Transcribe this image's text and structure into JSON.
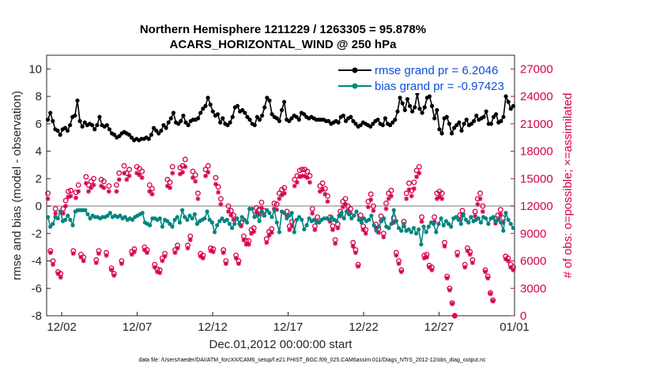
{
  "chart_data": {
    "type": "line",
    "title": "Northern Hemisphere 1211229 / 1263305 = 95.878%",
    "subtitle": "ACARS_HORIZONTAL_WIND @ 250 hPa",
    "xlabel": "Dec.01,2012 00:00:00 start",
    "ylabel": "rmse and bias (model - observation)",
    "ylabel_right": "# of obs: o=possible; ×=assimilated",
    "x_ticks": [
      "12/02",
      "12/07",
      "12/12",
      "12/17",
      "12/22",
      "12/27",
      "01/01"
    ],
    "x_tick_days": [
      1,
      6,
      11,
      16,
      21,
      26,
      31
    ],
    "xlim": [
      0,
      31
    ],
    "ylim": [
      -8,
      11
    ],
    "y_ticks": [
      -8,
      -6,
      -4,
      -2,
      0,
      2,
      4,
      6,
      8,
      10
    ],
    "y_right_lim": [
      0,
      28500
    ],
    "y_right_ticks": [
      0,
      3000,
      6000,
      9000,
      12000,
      15000,
      18000,
      21000,
      24000,
      27000
    ],
    "zero_line": true,
    "legend": [
      {
        "label": "rmse grand pr = 6.2046",
        "color": "#000000"
      },
      {
        "label": "bias grand pr = -0.97423",
        "color": "#00857f"
      }
    ],
    "footnote": "data file: /Users/raeder/DAI/ATM_forcXX/CAM6_setup/f.e21.FHIST_BGC.f09_025.CAM6assim.011/Diags_NTrS_2012-12/obs_diag_output.nc",
    "series": [
      {
        "name": "rmse",
        "color": "#000000",
        "values": [
          6.3,
          6.8,
          6.2,
          5.6,
          5.5,
          5.2,
          5.6,
          5.7,
          5.5,
          5.9,
          6.5,
          6.6,
          7.7,
          6.2,
          5.8,
          6.1,
          5.9,
          6.0,
          5.9,
          5.6,
          5.9,
          6.5,
          5.9,
          5.8,
          5.9,
          5.6,
          5.3,
          5.2,
          5.0,
          5.1,
          5.3,
          5.4,
          5.3,
          5.2,
          5.0,
          4.8,
          4.9,
          4.8,
          4.9,
          4.9,
          5.0,
          4.9,
          5.2,
          5.7,
          5.5,
          5.3,
          5.5,
          5.9,
          5.7,
          6.1,
          6.4,
          6.8,
          6.1,
          6.0,
          6.2,
          6.6,
          6.1,
          5.9,
          6.2,
          6.3,
          6.3,
          6.4,
          6.8,
          7.1,
          7.3,
          7.9,
          7.4,
          6.9,
          6.6,
          6.7,
          6.1,
          6.4,
          6.0,
          5.9,
          6.1,
          6.5,
          7.2,
          7.3,
          6.9,
          7.0,
          6.8,
          6.5,
          6.3,
          6.0,
          5.9,
          6.5,
          6.3,
          6.6,
          7.2,
          7.9,
          7.7,
          6.7,
          6.5,
          6.4,
          6.2,
          7.0,
          7.6,
          6.3,
          6.2,
          6.4,
          6.6,
          6.5,
          6.3,
          6.8,
          6.7,
          6.5,
          6.4,
          6.5,
          6.4,
          6.3,
          6.3,
          6.3,
          6.3,
          6.2,
          6.2,
          6.0,
          6.1,
          6.2,
          6.1,
          6.5,
          6.6,
          6.2,
          6.4,
          6.5,
          6.2,
          6.0,
          5.8,
          5.9,
          6.1,
          6.0,
          5.9,
          5.8,
          6.0,
          6.2,
          6.3,
          6.0,
          5.9,
          6.4,
          6.0,
          5.9,
          6.1,
          6.3,
          6.9,
          7.9,
          7.5,
          7.0,
          7.8,
          7.3,
          6.9,
          7.2,
          8.2,
          7.1,
          6.8,
          7.2,
          7.9,
          8.0,
          7.3,
          6.4,
          7.0,
          5.6,
          5.3,
          6.4,
          6.5,
          6.0,
          5.3,
          5.7,
          5.9,
          6.1,
          5.5,
          6.0,
          6.3,
          5.9,
          6.0,
          6.2,
          6.6,
          6.3,
          6.4,
          6.5,
          6.9,
          6.0,
          6.0,
          6.5,
          6.7,
          6.1,
          6.2,
          6.5,
          8.0,
          7.6,
          7.1,
          7.3
        ]
      },
      {
        "name": "bias",
        "color": "#00857f",
        "values": [
          -0.8,
          -1.5,
          -1.3,
          -0.8,
          -0.9,
          -0.4,
          -1.1,
          -1.0,
          -0.7,
          -1.0,
          -1.4,
          -0.4,
          -0.3,
          -0.3,
          -0.3,
          -0.3,
          -0.6,
          -0.9,
          -0.7,
          -0.8,
          -0.8,
          -0.9,
          -0.8,
          -0.8,
          -0.7,
          -0.5,
          -0.8,
          -0.7,
          -0.8,
          -0.7,
          -0.9,
          -0.8,
          -1.0,
          -0.9,
          -1.0,
          -0.8,
          -0.7,
          -0.6,
          -0.5,
          -1.2,
          -1.3,
          -1.4,
          -0.9,
          -0.9,
          -1.0,
          -0.9,
          -1.5,
          -1.0,
          -1.1,
          -1.3,
          -1.5,
          -1.0,
          -0.8,
          -1.2,
          -0.3,
          -0.8,
          -1.0,
          -0.7,
          -0.9,
          -0.6,
          -1.3,
          -1.1,
          -1.0,
          -0.9,
          -0.4,
          -1.0,
          -1.2,
          -1.9,
          -1.4,
          -1.1,
          -0.9,
          -1.1,
          -1.0,
          -1.3,
          -1.6,
          -1.3,
          -0.9,
          -1.3,
          -0.8,
          -1.0,
          -1.2,
          -0.2,
          -0.2,
          -0.8,
          -0.7,
          -1.1,
          -0.4,
          -0.7,
          -0.3,
          -0.5,
          -0.8,
          -0.3,
          -1.2,
          -1.9,
          -0.4,
          -0.5,
          -0.9,
          -0.7,
          -0.5,
          -1.9,
          -1.0,
          -0.8,
          -1.0,
          -1.7,
          -1.4,
          -0.9,
          -1.1,
          -1.0,
          -1.2,
          -1.2,
          -1.0,
          -0.9,
          -0.9,
          -1.0,
          -0.8,
          -1.0,
          -1.1,
          -0.7,
          -0.5,
          -0.9,
          -0.4,
          -0.6,
          -0.9,
          -0.7,
          -0.4,
          -1.0,
          -1.2,
          -0.9,
          -1.1,
          -1.0,
          -0.7,
          -1.4,
          -1.8,
          -1.5,
          -1.1,
          -0.9,
          -1.5,
          -1.6,
          -1.3,
          -0.3,
          -1.1,
          -1.6,
          -1.8,
          -1.3,
          -1.8,
          -1.7,
          -1.9,
          -1.6,
          -2.0,
          -1.7,
          -2.8,
          -1.5,
          -1.9,
          -1.5,
          -1.2,
          -1.3,
          -1.9,
          -1.3,
          -0.9,
          -1.4,
          -1.1,
          -1.3,
          -1.5,
          -0.9,
          -0.8,
          -1.0,
          -1.3,
          -0.6,
          -1.0,
          -1.2,
          -0.8,
          -1.1,
          -1.0,
          -0.9,
          -1.2,
          -0.8,
          -0.9,
          -1.3,
          -0.9,
          -0.8,
          -1.1,
          -0.9,
          -1.2,
          -1.8,
          -0.5,
          -1.0,
          -1.3,
          -1.6
        ]
      },
      {
        "name": "possible",
        "color": "#d6004f",
        "marker": "o",
        "values": [
          13400,
          7100,
          6000,
          11700,
          4800,
          4600,
          11700,
          12600,
          13600,
          13700,
          7100,
          13500,
          14300,
          6700,
          6400,
          15200,
          14300,
          14700,
          15000,
          6100,
          7100,
          14900,
          14700,
          6900,
          14200,
          5200,
          4600,
          14300,
          15600,
          6000,
          16400,
          15600,
          16000,
          7000,
          7300,
          16300,
          16100,
          15800,
          7500,
          7200,
          14300,
          13900,
          5600,
          5100,
          5000,
          6300,
          6800,
          14900,
          14600,
          16300,
          7200,
          7700,
          16200,
          16400,
          17100,
          7700,
          8700,
          15800,
          15400,
          13400,
          6800,
          6600,
          16000,
          16400,
          7400,
          7300,
          15100,
          14100,
          12800,
          7200,
          6000,
          12000,
          11500,
          11000,
          6600,
          6000,
          10200,
          8700,
          8200,
          8200,
          9400,
          9600,
          11800,
          11600,
          12400,
          11500,
          8400,
          9200,
          9500,
          12300,
          12200,
          13400,
          13800,
          14000,
          11400,
          9800,
          10300,
          14900,
          15300,
          15900,
          16000,
          16000,
          15800,
          15300,
          11700,
          9800,
          10800,
          14200,
          14500,
          13900,
          13100,
          10800,
          9800,
          8300,
          10000,
          11400,
          12500,
          12800,
          12000,
          11700,
          8000,
          7200,
          5600,
          11000,
          9800,
          9400,
          12500,
          13300,
          12000,
          10000,
          9500,
          10900,
          9000,
          12300,
          13400,
          13700,
          10700,
          6900,
          6000,
          5000,
          10300,
          13400,
          14500,
          13700,
          14600,
          15900,
          16300,
          10800,
          6600,
          6700,
          5500,
          5300,
          10800,
          13400,
          13600,
          13400,
          8000,
          4300,
          3000,
          1400,
          0,
          6900,
          11000,
          11500,
          5600,
          7400,
          7000,
          6100,
          11400,
          12800,
          13400,
          12000,
          5000,
          4300,
          2500,
          1700,
          10600,
          11000,
          11600,
          10700,
          6500,
          6300,
          5600,
          5300
        ]
      },
      {
        "name": "assimilated",
        "color": "#d6004f",
        "marker": "x",
        "values": [
          12800,
          6900,
          5600,
          11200,
          4600,
          4200,
          11200,
          12000,
          13000,
          13100,
          6800,
          12900,
          13600,
          6400,
          6000,
          14500,
          13600,
          14000,
          14300,
          5800,
          6800,
          14200,
          14000,
          6600,
          13600,
          5000,
          4400,
          13600,
          14900,
          5700,
          15600,
          14900,
          15300,
          6700,
          7000,
          15600,
          15400,
          15100,
          7200,
          6900,
          13600,
          13300,
          5300,
          4800,
          4700,
          6000,
          6500,
          14200,
          14000,
          15600,
          6900,
          7400,
          15500,
          15700,
          16300,
          7400,
          8300,
          15100,
          14700,
          12800,
          6500,
          6300,
          15300,
          15700,
          7100,
          7000,
          14400,
          13500,
          12200,
          6900,
          5700,
          11400,
          11000,
          10500,
          6300,
          5700,
          9800,
          8300,
          7800,
          7800,
          9000,
          9200,
          11300,
          11100,
          11800,
          11000,
          8000,
          8800,
          9100,
          11700,
          11600,
          12800,
          13200,
          13400,
          10900,
          9400,
          9800,
          14200,
          14600,
          15200,
          15300,
          15300,
          15100,
          14600,
          11200,
          9400,
          10300,
          13600,
          13800,
          13300,
          12500,
          10300,
          9400,
          7900,
          9600,
          10900,
          11900,
          12200,
          11500,
          11200,
          7600,
          6900,
          5400,
          10500,
          9400,
          9000,
          11900,
          12700,
          11500,
          9600,
          9100,
          10400,
          8600,
          11700,
          12800,
          13100,
          10200,
          6600,
          5700,
          4800,
          9800,
          12800,
          13800,
          13100,
          13900,
          15200,
          15600,
          10300,
          6300,
          6400,
          5300,
          5000,
          10300,
          12800,
          13000,
          12800,
          7600,
          4100,
          2800,
          1300,
          0,
          6600,
          10500,
          11000,
          5300,
          7100,
          6700,
          5800,
          10900,
          12200,
          12800,
          11400,
          4800,
          4100,
          2400,
          1600,
          10100,
          10500,
          11100,
          10200,
          6200,
          6000,
          5300,
          5000
        ]
      }
    ]
  }
}
